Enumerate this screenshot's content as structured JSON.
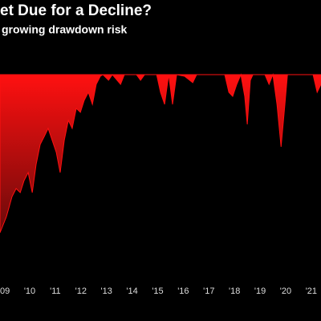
{
  "chart_data": {
    "type": "area",
    "title": "et Due for a Decline?",
    "subtitle": "growing drawdown risk",
    "color": "#ff1010",
    "color_bottom": "#6a0a0a",
    "x": [
      2009.34,
      2009.59,
      2009.81,
      2009.97,
      2010.13,
      2010.28,
      2010.44,
      2010.6,
      2010.75,
      2010.91,
      2011.07,
      2011.22,
      2011.38,
      2011.54,
      2011.69,
      2011.85,
      2012.01,
      2012.16,
      2012.32,
      2012.48,
      2012.63,
      2012.79,
      2012.95,
      2013.1,
      2013.26,
      2013.36,
      2013.58,
      2013.73,
      2014.05,
      2014.2,
      2014.67,
      2014.83,
      2014.99,
      2015.46,
      2015.61,
      2015.77,
      2015.93,
      2016.08,
      2016.24,
      2016.55,
      2016.87,
      2017.02,
      2018.12,
      2018.28,
      2018.43,
      2018.59,
      2018.75,
      2018.9,
      2019.0,
      2019.12,
      2019.22,
      2019.69,
      2019.85,
      2020.0,
      2020.16,
      2020.32,
      2020.47,
      2020.57,
      2021.57,
      2021.73,
      2021.88
    ],
    "values": [
      -39.4,
      -35.4,
      -30.4,
      -28.4,
      -29.4,
      -26.4,
      -24.4,
      -29.4,
      -22.4,
      -17.4,
      -15.4,
      -13.4,
      -16.4,
      -19.4,
      -24.4,
      -16.4,
      -11.4,
      -13.4,
      -8.4,
      -9.4,
      -6.4,
      -4.4,
      -7.4,
      -2.4,
      -0.4,
      0,
      -1.4,
      0,
      -2.4,
      0,
      0,
      -1.4,
      0,
      0,
      -4.4,
      -7.4,
      0,
      -7.4,
      0,
      -0.4,
      -2,
      0,
      0,
      -4.4,
      -5.4,
      -2.4,
      0,
      -5.4,
      -12.4,
      -1.4,
      0,
      0,
      -2.4,
      0,
      -7.4,
      -18,
      -7.4,
      0,
      0,
      -4.4,
      -2.4
    ],
    "xlim": [
      2009.34,
      2021.88
    ],
    "xticks": [
      {
        "value": 2009.5,
        "label": "'09"
      },
      {
        "value": 2010.5,
        "label": "'10"
      },
      {
        "value": 2011.5,
        "label": "'11"
      },
      {
        "value": 2012.5,
        "label": "'12"
      },
      {
        "value": 2013.5,
        "label": "'13"
      },
      {
        "value": 2014.5,
        "label": "'14"
      },
      {
        "value": 2015.5,
        "label": "'15"
      },
      {
        "value": 2016.5,
        "label": "'16"
      },
      {
        "value": 2017.5,
        "label": "'17"
      },
      {
        "value": 2018.5,
        "label": "'18"
      },
      {
        "value": 2019.5,
        "label": "'19"
      },
      {
        "value": 2020.5,
        "label": "'20"
      },
      {
        "value": 2021.5,
        "label": "'21"
      }
    ],
    "ylim": [
      -50,
      0
    ]
  }
}
